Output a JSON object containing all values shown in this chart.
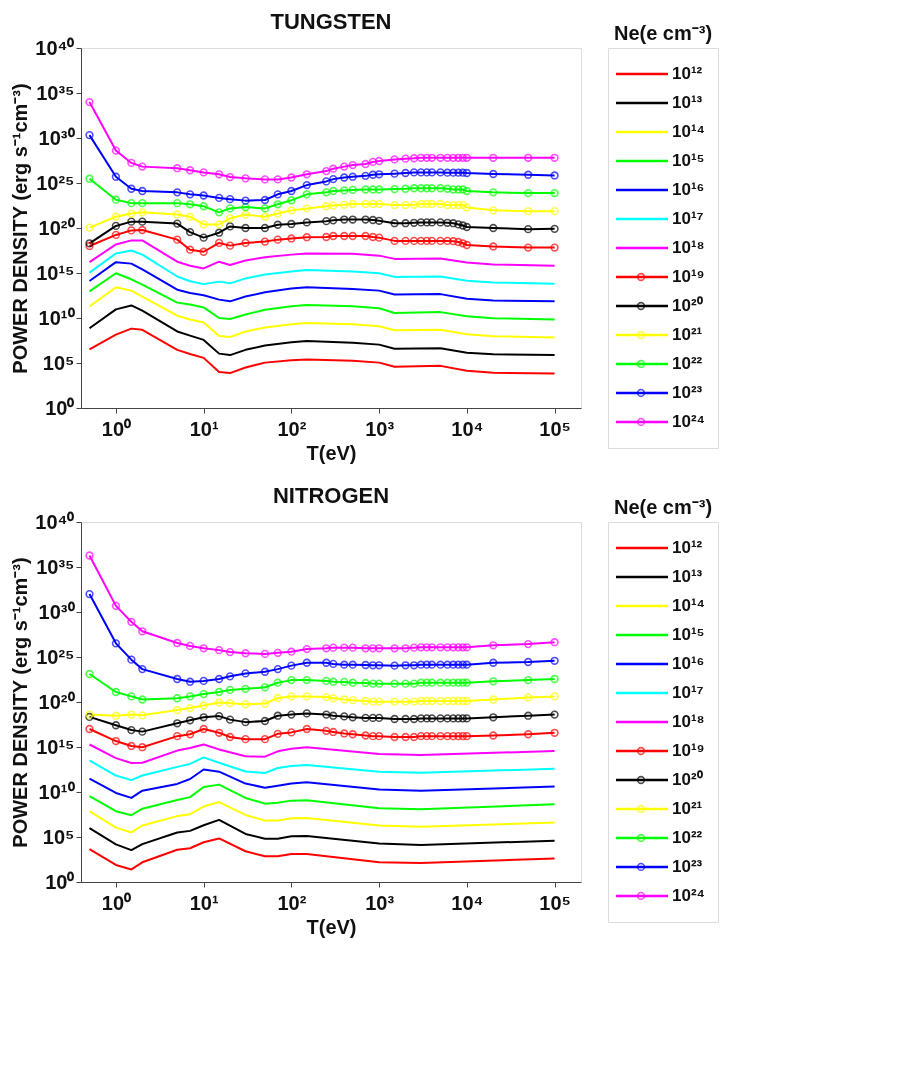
{
  "chart_data": [
    {
      "type": "line",
      "title": "TUNGSTEN",
      "xlabel": "T(eV)",
      "ylabel": "POWER DENSITY (erg s⁻¹cm⁻³)",
      "legend_title": "Ne(e cm⁻³)",
      "legend": "right",
      "grid": false,
      "log": "xy",
      "xlim": [
        0.4,
        200000
      ],
      "ylim": [
        1,
        1e+40
      ],
      "xticks": [
        {
          "value": 1,
          "label": "10⁰"
        },
        {
          "value": 10,
          "label": "10¹"
        },
        {
          "value": 100,
          "label": "10²"
        },
        {
          "value": 1000,
          "label": "10³"
        },
        {
          "value": 10000,
          "label": "10⁴"
        },
        {
          "value": 100000,
          "label": "10⁵"
        }
      ],
      "yticks": [
        {
          "value": 1,
          "label": "10⁰"
        },
        {
          "value": 100000.0,
          "label": "10⁵"
        },
        {
          "value": 10000000000.0,
          "label": "10¹⁰"
        },
        {
          "value": 1000000000000000.0,
          "label": "10¹⁵"
        },
        {
          "value": 1e+20,
          "label": "10²⁰"
        },
        {
          "value": 1e+25,
          "label": "10²⁵"
        },
        {
          "value": 1e+30,
          "label": "10³⁰"
        },
        {
          "value": 1e+35,
          "label": "10³⁵"
        },
        {
          "value": 1e+40,
          "label": "10⁴⁰"
        }
      ],
      "series": [
        {
          "name": "10¹²",
          "color": "#ff0000",
          "marker": "none",
          "x": [
            0.5,
            1,
            1.5,
            2,
            5,
            7,
            10,
            15,
            20,
            30,
            50,
            100,
            150,
            500,
            1000,
            1500,
            5000,
            10000,
            20000,
            100000
          ],
          "values": [
            3200000.0,
            140000000.0,
            660000000.0,
            490000000.0,
            2900000.0,
            1000000.0,
            370000.0,
            10000.0,
            7600.0,
            32000.0,
            110000.0,
            200000.0,
            250000.0,
            180000.0,
            110000.0,
            39000.0,
            48000.0,
            14000.0,
            8300.0,
            6800.0
          ]
        },
        {
          "name": "10¹³",
          "color": "#000000",
          "marker": "none",
          "x": [
            0.5,
            1,
            1.5,
            2,
            5,
            7,
            10,
            15,
            20,
            30,
            50,
            100,
            150,
            500,
            1000,
            1500,
            5000,
            10000,
            20000,
            100000
          ],
          "values": [
            720000000.0,
            91000000000.0,
            250000000000.0,
            66000000000.0,
            320000000.0,
            110000000.0,
            37000000.0,
            1100000.0,
            760000.0,
            2900000.0,
            8900000.0,
            20000000.0,
            28000000.0,
            18000000.0,
            11000000.0,
            3900000.0,
            4400000.0,
            1400000.0,
            930000.0,
            760000.0
          ]
        },
        {
          "name": "10¹⁴",
          "color": "#ffff00",
          "marker": "none",
          "x": [
            0.5,
            1,
            1.5,
            2,
            5,
            7,
            10,
            15,
            20,
            30,
            50,
            100,
            150,
            500,
            1000,
            1500,
            5000,
            10000,
            20000,
            100000
          ],
          "values": [
            190000000000.0,
            26000000000000.0,
            11000000000000.0,
            2400000000000.0,
            18000000000.0,
            6900000000.0,
            3100000000.0,
            100000000.0,
            76000000.0,
            320000000.0,
            890000000.0,
            2000000000.0,
            2800000000.0,
            2000000000.0,
            1200000000.0,
            440000000.0,
            490000000.0,
            160000000.0,
            93000000.0,
            69000000.0
          ]
        },
        {
          "name": "10¹⁵",
          "color": "#00ff00",
          "marker": "none",
          "x": [
            0.5,
            1,
            1.5,
            2,
            5,
            7,
            10,
            15,
            20,
            30,
            50,
            100,
            150,
            500,
            1000,
            1500,
            5000,
            10000,
            20000,
            100000
          ],
          "values": [
            9100000000000.0,
            930000000000000.0,
            200000000000000.0,
            52000000000000.0,
            510000000000.0,
            310000000000.0,
            150000000000.0,
            10000000000.0,
            7800000000.0,
            24000000000.0,
            81000000000.0,
            200000000000.0,
            280000000000.0,
            200000000000.0,
            120000000000.0,
            36000000000.0,
            45000000000.0,
            16000000000.0,
            9500000000.0,
            6900000000.0
          ]
        },
        {
          "name": "10¹⁶",
          "color": "#0000ff",
          "marker": "none",
          "x": [
            0.5,
            1,
            1.5,
            2,
            5,
            7,
            10,
            15,
            20,
            30,
            50,
            100,
            150,
            500,
            1000,
            1500,
            5000,
            10000,
            20000,
            100000
          ],
          "values": [
            130000000000000.0,
            1.6e+16,
            1.1e+16,
            2600000000000000.0,
            14000000000000.0,
            6000000000000.0,
            3300000000000.0,
            1100000000000.0,
            710000000000.0,
            2400000000000.0,
            7400000000000.0,
            19000000000000.0,
            26000000000000.0,
            17000000000000.0,
            11000000000000.0,
            4100000000000.0,
            4500000000000.0,
            1400000000000.0,
            870000000000.0,
            710000000000.0
          ]
        },
        {
          "name": "10¹⁷",
          "color": "#00ffff",
          "marker": "none",
          "x": [
            0.5,
            1,
            1.5,
            2,
            5,
            7,
            10,
            15,
            20,
            30,
            50,
            100,
            150,
            500,
            1000,
            1500,
            5000,
            10000,
            20000,
            100000
          ],
          "values": [
            1100000000000000.0,
            1.5e+17,
            3.2e+17,
            1.1e+17,
            410000000000000.0,
            120000000000000.0,
            58000000000000.0,
            110000000000000.0,
            71000000000000.0,
            250000000000000.0,
            680000000000000.0,
            1500000000000000.0,
            2100000000000000.0,
            1500000000000000.0,
            930000000000000.0,
            370000000000000.0,
            410000000000000.0,
            140000000000000.0,
            87000000000000.0,
            65000000000000.0
          ]
        },
        {
          "name": "10¹⁸",
          "color": "#ff00ff",
          "marker": "none",
          "x": [
            0.5,
            1,
            1.5,
            2,
            5,
            7,
            10,
            15,
            20,
            30,
            50,
            100,
            150,
            500,
            1000,
            1500,
            5000,
            10000,
            20000,
            100000
          ],
          "values": [
            1.6e+16,
            1.5e+18,
            4.2e+18,
            4.2e+18,
            1.8e+16,
            6500000000000000.0,
            3200000000000000.0,
            1.8e+16,
            7900000000000000.0,
            2.5e+16,
            5.6e+16,
            1.1e+17,
            1.5e+17,
            1.4e+17,
            8.5e+16,
            3.7e+16,
            4.1e+16,
            1.5e+16,
            8900000000000000.0,
            6500000000000000.0
          ]
        },
        {
          "name": "10¹⁹",
          "color": "#ff0000",
          "marker": "circle",
          "x": [
            0.5,
            1,
            1.5,
            2,
            5,
            7,
            10,
            15,
            20,
            30,
            50,
            70,
            100,
            150,
            250,
            300,
            400,
            500,
            700,
            850,
            1000,
            1500,
            2000,
            2500,
            3000,
            3500,
            4000,
            5000,
            6000,
            7000,
            8000,
            9000,
            10000,
            20000,
            50000,
            100000
          ],
          "values": [
            1e+18,
            1.7e+19,
            5.4e+19,
            6e+19,
            5.1e+18,
            3.9e+17,
            2.3e+17,
            2.2e+18,
            1.1e+18,
            2.2e+18,
            3.1e+18,
            5.1e+18,
            6.9e+18,
            9.5e+18,
            1e+19,
            1.3e+19,
            1.3e+19,
            1.3e+19,
            1.3e+19,
            1e+19,
            8.5e+18,
            3.7e+18,
            3.7e+18,
            3.7e+18,
            3.7e+18,
            3.7e+18,
            3.7e+18,
            3.7e+18,
            3.7e+18,
            3.4e+18,
            2.8e+18,
            2e+18,
            1.3e+18,
            8.9e+17,
            6.6e+17,
            6.6e+17
          ]
        },
        {
          "name": "10²⁰",
          "color": "#000000",
          "marker": "circle",
          "x": [
            0.5,
            1,
            1.5,
            2,
            5,
            7,
            10,
            15,
            20,
            30,
            50,
            70,
            100,
            150,
            250,
            300,
            400,
            500,
            700,
            850,
            1000,
            1500,
            2000,
            2500,
            3000,
            3500,
            4000,
            5000,
            6000,
            7000,
            8000,
            9000,
            10000,
            20000,
            50000,
            100000
          ],
          "values": [
            2e+18,
            1.7e+20,
            5.1e+20,
            5.1e+20,
            3.1e+20,
            3.5e+19,
            8.5e+18,
            3e+19,
            1.5e+20,
            1e+20,
            1e+20,
            2.3e+20,
            2.8e+20,
            4.2e+20,
            5.8e+20,
            7.1e+20,
            8.7e+20,
            8.7e+20,
            8.7e+20,
            7.8e+20,
            6.3e+20,
            3.4e+20,
            3.4e+20,
            3.8e+20,
            4.2e+20,
            4.2e+20,
            4.2e+20,
            4.2e+20,
            3.8e+20,
            3.4e+20,
            2.5e+20,
            1.9e+20,
            1.3e+20,
            1e+20,
            7.4e+19,
            8.1e+19
          ]
        },
        {
          "name": "10²¹",
          "color": "#ffff00",
          "marker": "circle",
          "x": [
            0.5,
            1,
            1.5,
            2,
            5,
            7,
            10,
            15,
            20,
            30,
            50,
            70,
            100,
            150,
            250,
            300,
            400,
            500,
            700,
            850,
            1000,
            1500,
            2000,
            2500,
            3000,
            3500,
            4000,
            5000,
            6000,
            7000,
            8000,
            9000,
            10000,
            20000,
            50000,
            100000
          ],
          "values": [
            1.1e+20,
            1.8e+21,
            4e+21,
            5.5e+21,
            3.2e+21,
            1.8e+21,
            2.5e+20,
            2.5e+20,
            1.2e+21,
            3.2e+21,
            1.8e+21,
            4e+21,
            9.1e+21,
            1.5e+22,
            2.6e+22,
            3.1e+22,
            3.8e+22,
            4.7e+22,
            4.7e+22,
            4.7e+22,
            4.7e+22,
            3.5e+22,
            3.5e+22,
            3.8e+22,
            4.7e+22,
            4.7e+22,
            4.7e+22,
            4.7e+22,
            3.5e+22,
            3.5e+22,
            3.5e+22,
            3.5e+22,
            1.9e+22,
            9.1e+21,
            7.4e+21,
            7.4e+21
          ]
        },
        {
          "name": "10²²",
          "color": "#00ff00",
          "marker": "circle",
          "x": [
            0.5,
            1,
            1.5,
            2,
            5,
            7,
            10,
            15,
            20,
            30,
            50,
            70,
            100,
            150,
            250,
            300,
            400,
            500,
            700,
            850,
            1000,
            1500,
            2000,
            2500,
            3000,
            3500,
            4000,
            5000,
            6000,
            7000,
            8000,
            9000,
            10000,
            20000,
            50000,
            100000
          ],
          "values": [
            3e+25,
            1.4e+23,
            5.8e+22,
            5.8e+22,
            5.8e+22,
            4.3e+22,
            2.6e+22,
            5.5e+21,
            1.5e+22,
            2.1e+22,
            1.5e+22,
            4.3e+22,
            1.2e+23,
            5.5e+23,
            9.1e+23,
            1.3e+24,
            1.5e+24,
            1.7e+24,
            1.9e+24,
            1.9e+24,
            1.9e+24,
            2.1e+24,
            2.3e+24,
            2.6e+24,
            2.6e+24,
            2.6e+24,
            2.6e+24,
            2.6e+24,
            2.3e+24,
            1.9e+24,
            1.9e+24,
            1.9e+24,
            1.3e+24,
            9.1e+23,
            7.6e+23,
            7.6e+23
          ]
        },
        {
          "name": "10²³",
          "color": "#0000ff",
          "marker": "circle",
          "x": [
            0.5,
            1,
            1.5,
            2,
            5,
            7,
            10,
            15,
            20,
            30,
            50,
            70,
            100,
            150,
            250,
            300,
            400,
            500,
            700,
            850,
            1000,
            1500,
            2000,
            2500,
            3000,
            3500,
            4000,
            5000,
            6000,
            7000,
            8000,
            9000,
            10000,
            20000,
            50000,
            100000
          ],
          "values": [
            2.1e+30,
            5e+25,
            2.3e+24,
            1.3e+24,
            9.1e+23,
            5.5e+23,
            4.1e+23,
            2.2e+23,
            1.6e+23,
            1.1e+23,
            1.3e+23,
            5.5e+23,
            1.3e+24,
            5.9e+24,
            1.5e+25,
            2.7e+25,
            4.1e+25,
            5e+25,
            6.2e+25,
            8.3e+25,
            9.3e+25,
            1.1e+26,
            1.3e+26,
            1.5e+26,
            1.5e+26,
            1.5e+26,
            1.5e+26,
            1.5e+26,
            1.4e+26,
            1.4e+26,
            1.4e+26,
            1.4e+26,
            1.3e+26,
            1e+26,
            8.3e+25,
            6.9e+25
          ]
        },
        {
          "name": "10²⁴",
          "color": "#ff00ff",
          "marker": "circle",
          "x": [
            0.5,
            1,
            1.5,
            2,
            5,
            7,
            10,
            15,
            20,
            30,
            50,
            70,
            100,
            150,
            250,
            300,
            400,
            500,
            700,
            850,
            1000,
            1500,
            2000,
            2500,
            3000,
            3500,
            4000,
            5000,
            6000,
            7000,
            8000,
            9000,
            10000,
            20000,
            50000,
            100000
          ],
          "values": [
            9.8e+33,
            4e+28,
            1.7e+27,
            6.6e+26,
            4.4e+26,
            2.6e+26,
            1.5e+26,
            9.3e+25,
            4.6e+25,
            3.3e+25,
            2.5e+25,
            2.5e+25,
            4.1e+25,
            9.3e+25,
            2.1e+26,
            3.9e+26,
            6.6e+26,
            9.8e+26,
            1.3e+27,
            2.2e+27,
            2.8e+27,
            4.2e+27,
            5.1e+27,
            5.6e+27,
            6.3e+27,
            6.3e+27,
            6.3e+27,
            6.3e+27,
            6.3e+27,
            6.3e+27,
            6.3e+27,
            6.3e+27,
            6.3e+27,
            6.3e+27,
            6.3e+27,
            6.3e+27
          ]
        }
      ]
    },
    {
      "type": "line",
      "title": "NITROGEN",
      "xlabel": "T(eV)",
      "ylabel": "POWER DENSITY (erg s⁻¹cm⁻³)",
      "legend_title": "Ne(e cm⁻³)",
      "legend": "right",
      "grid": false,
      "log": "xy",
      "xlim": [
        0.4,
        200000
      ],
      "ylim": [
        1,
        1e+40
      ],
      "xticks": [
        {
          "value": 1,
          "label": "10⁰"
        },
        {
          "value": 10,
          "label": "10¹"
        },
        {
          "value": 100,
          "label": "10²"
        },
        {
          "value": 1000,
          "label": "10³"
        },
        {
          "value": 10000,
          "label": "10⁴"
        },
        {
          "value": 100000,
          "label": "10⁵"
        }
      ],
      "yticks": [
        {
          "value": 1,
          "label": "10⁰"
        },
        {
          "value": 100000.0,
          "label": "10⁵"
        },
        {
          "value": 10000000000.0,
          "label": "10¹⁰"
        },
        {
          "value": 1000000000000000.0,
          "label": "10¹⁵"
        },
        {
          "value": 1e+20,
          "label": "10²⁰"
        },
        {
          "value": 1e+25,
          "label": "10²⁵"
        },
        {
          "value": 1e+30,
          "label": "10³⁰"
        },
        {
          "value": 1e+35,
          "label": "10³⁵"
        },
        {
          "value": 1e+40,
          "label": "10⁴⁰"
        }
      ],
      "series": [
        {
          "name": "10¹²",
          "color": "#ff0000",
          "marker": "none",
          "x": [
            0.5,
            1,
            1.5,
            2,
            5,
            7,
            10,
            15,
            30,
            50,
            70,
            100,
            150,
            1000,
            3000,
            100000
          ],
          "values": [
            4600.0,
            78,
            25,
            155,
            3800.0,
            5600.0,
            26000.0,
            69000.0,
            2600.0,
            720,
            720,
            1300.0,
            1300.0,
            155,
            126,
            410
          ]
        },
        {
          "name": "10¹³",
          "color": "#000000",
          "marker": "none",
          "x": [
            0.5,
            1,
            1.5,
            2,
            5,
            7,
            10,
            15,
            30,
            50,
            70,
            100,
            150,
            1000,
            3000,
            100000
          ],
          "values": [
            950000.0,
            15000.0,
            3500.0,
            16000.0,
            320000.0,
            480000.0,
            2000000.0,
            7900000.0,
            220000.0,
            63000.0,
            63000.0,
            120000.0,
            130000.0,
            19000.0,
            13000.0,
            39000.0
          ]
        },
        {
          "name": "10¹⁴",
          "color": "#ffff00",
          "marker": "none",
          "x": [
            0.5,
            1,
            1.5,
            2,
            5,
            7,
            10,
            15,
            30,
            50,
            70,
            100,
            150,
            1000,
            3000,
            100000
          ],
          "values": [
            74000000.0,
            1100000.0,
            320000.0,
            1900000.0,
            21000000.0,
            34000000.0,
            240000000.0,
            760000000.0,
            28000000.0,
            6600000.0,
            6600000.0,
            12000000.0,
            13000000.0,
            1900000.0,
            1400000.0,
            4100000.0
          ]
        },
        {
          "name": "10¹⁵",
          "color": "#00ff00",
          "marker": "none",
          "x": [
            0.5,
            1,
            1.5,
            2,
            5,
            7,
            10,
            15,
            30,
            50,
            70,
            100,
            150,
            1000,
            3000,
            100000
          ],
          "values": [
            3500000000.0,
            74000000.0,
            26000000.0,
            140000000.0,
            1300000000.0,
            2700000000.0,
            36000000000.0,
            66000000000.0,
            2200000000.0,
            510000000.0,
            630000000.0,
            1100000000.0,
            1200000000.0,
            160000000.0,
            120000000.0,
            430000000.0
          ]
        },
        {
          "name": "10¹⁶",
          "color": "#0000ff",
          "marker": "none",
          "x": [
            0.5,
            1,
            1.5,
            2,
            5,
            7,
            10,
            15,
            30,
            50,
            70,
            100,
            150,
            1000,
            3000,
            100000
          ],
          "values": [
            310000000000.0,
            7800000000.0,
            2200000000.0,
            14000000000.0,
            79000000000.0,
            280000000000.0,
            3200000000000.0,
            1800000000000.0,
            87000000000.0,
            30000000000.0,
            49000000000.0,
            87000000000.0,
            120000000000.0,
            19000000000.0,
            14000000000.0,
            41000000000.0
          ]
        },
        {
          "name": "10¹⁷",
          "color": "#00ffff",
          "marker": "none",
          "x": [
            0.5,
            1,
            1.5,
            2,
            5,
            7,
            10,
            15,
            30,
            50,
            70,
            100,
            150,
            1000,
            3000,
            100000
          ],
          "values": [
            32000000000000.0,
            680000000000.0,
            210000000000.0,
            680000000000.0,
            6200000000000.0,
            13000000000000.0,
            71000000000000.0,
            18000000000000.0,
            1900000000000.0,
            1300000000000.0,
            4700000000000.0,
            7600000000000.0,
            10000000000000.0,
            1800000000000.0,
            1400000000000.0,
            3800000000000.0
          ]
        },
        {
          "name": "10¹⁸",
          "color": "#ff00ff",
          "marker": "none",
          "x": [
            0.5,
            1,
            1.5,
            2,
            5,
            7,
            10,
            15,
            30,
            50,
            70,
            100,
            150,
            1000,
            3000,
            100000
          ],
          "values": [
            1900000000000000.0,
            58000000000000.0,
            17000000000000.0,
            18000000000000.0,
            400000000000000.0,
            790000000000000.0,
            1900000000000000.0,
            540000000000000.0,
            93000000000000.0,
            85000000000000.0,
            330000000000000.0,
            650000000000000.0,
            950000000000000.0,
            170000000000000.0,
            130000000000000.0,
            360000000000000.0
          ]
        },
        {
          "name": "10¹⁹",
          "color": "#ff0000",
          "marker": "circle",
          "x": [
            0.5,
            1,
            1.5,
            2,
            5,
            7,
            10,
            15,
            20,
            30,
            50,
            70,
            100,
            150,
            250,
            300,
            400,
            500,
            700,
            850,
            1000,
            1500,
            2000,
            2500,
            3000,
            3500,
            4000,
            5000,
            6000,
            7000,
            8000,
            9000,
            10000,
            20000,
            50000,
            100000
          ],
          "values": [
            1e+17,
            4600000000000000.0,
            1300000000000000.0,
            950000000000000.0,
            1.6e+16,
            2.6e+16,
            1e+17,
            3.8e+16,
            1.3e+16,
            7400000000000000.0,
            7400000000000000.0,
            2.9e+16,
            4.2e+16,
            1e+17,
            6.2e+16,
            4.7e+16,
            3.2e+16,
            2.6e+16,
            1.9e+16,
            1.6e+16,
            1.6e+16,
            1.3e+16,
            1.3e+16,
            1.3e+16,
            1.6e+16,
            1.6e+16,
            1.6e+16,
            1.6e+16,
            1.6e+16,
            1.6e+16,
            1.6e+16,
            1.6e+16,
            1.6e+16,
            1.9e+16,
            2.6e+16,
            3.8e+16
          ]
        },
        {
          "name": "10²⁰",
          "color": "#000000",
          "marker": "circle",
          "x": [
            0.5,
            1,
            1.5,
            2,
            5,
            7,
            10,
            15,
            20,
            30,
            50,
            70,
            100,
            150,
            250,
            300,
            400,
            500,
            700,
            850,
            1000,
            1500,
            2000,
            2500,
            3000,
            3500,
            4000,
            5000,
            6000,
            7000,
            8000,
            9000,
            10000,
            20000,
            50000,
            100000
          ],
          "values": [
            2.2e+18,
            2.6e+17,
            7.6e+16,
            5.1e+16,
            4.3e+17,
            9.3e+17,
            2e+18,
            2.7e+18,
            1.1e+18,
            5.8e+17,
            7.8e+17,
            3e+18,
            4e+18,
            5.4e+18,
            4e+18,
            3e+18,
            2.5e+18,
            2e+18,
            1.7e+18,
            1.7e+18,
            1.7e+18,
            1.3e+18,
            1.3e+18,
            1.3e+18,
            1.5e+18,
            1.5e+18,
            1.5e+18,
            1.5e+18,
            1.5e+18,
            1.5e+18,
            1.5e+18,
            1.5e+18,
            1.5e+18,
            2e+18,
            3e+18,
            4e+18
          ]
        },
        {
          "name": "10²¹",
          "color": "#ffff00",
          "marker": "circle",
          "x": [
            0.5,
            1,
            1.5,
            2,
            5,
            7,
            10,
            15,
            20,
            30,
            50,
            70,
            100,
            150,
            250,
            300,
            400,
            500,
            700,
            850,
            1000,
            1500,
            2000,
            2500,
            3000,
            3500,
            4000,
            5000,
            6000,
            7000,
            8000,
            9000,
            10000,
            20000,
            50000,
            100000
          ],
          "values": [
            4e+18,
            3e+18,
            4e+18,
            3.3e+18,
            1.3e+19,
            2.1e+19,
            4.1e+19,
            8.9e+19,
            7.4e+19,
            5.5e+19,
            6.6e+19,
            2.8e+20,
            4.2e+20,
            4.2e+20,
            3.5e+20,
            2.6e+20,
            1.9e+20,
            1.6e+20,
            1.3e+20,
            1.1e+20,
            1.1e+20,
            1.1e+20,
            1.1e+20,
            1.1e+20,
            1.3e+20,
            1.3e+20,
            1.3e+20,
            1.3e+20,
            1.3e+20,
            1.3e+20,
            1.3e+20,
            1.3e+20,
            1.3e+20,
            1.9e+20,
            3.2e+20,
            4.2e+20
          ]
        },
        {
          "name": "10²²",
          "color": "#00ff00",
          "marker": "circle",
          "x": [
            0.5,
            1,
            1.5,
            2,
            5,
            7,
            10,
            15,
            20,
            30,
            50,
            70,
            100,
            150,
            250,
            300,
            400,
            500,
            700,
            850,
            1000,
            1500,
            2000,
            2500,
            3000,
            3500,
            4000,
            5000,
            6000,
            7000,
            8000,
            9000,
            10000,
            20000,
            50000,
            100000
          ],
          "values": [
            1.3e+23,
            1.3e+21,
            4.2e+20,
            1.9e+20,
            2.6e+20,
            4.2e+20,
            7.6e+20,
            1.3e+21,
            2.2e+21,
            2.9e+21,
            4.3e+21,
            1.4e+22,
            2.7e+22,
            2.7e+22,
            2.2e+22,
            1.8e+22,
            1.7e+22,
            1.4e+22,
            1.3e+22,
            1.1e+22,
            1.1e+22,
            1.1e+22,
            1.1e+22,
            1.1e+22,
            1.4e+22,
            1.4e+22,
            1.4e+22,
            1.4e+22,
            1.4e+22,
            1.4e+22,
            1.4e+22,
            1.4e+22,
            1.4e+22,
            2e+22,
            2.7e+22,
            3.6e+22
          ]
        },
        {
          "name": "10²³",
          "color": "#0000ff",
          "marker": "circle",
          "x": [
            0.5,
            1,
            1.5,
            2,
            5,
            7,
            10,
            15,
            20,
            30,
            50,
            70,
            100,
            150,
            250,
            300,
            400,
            500,
            700,
            850,
            1000,
            1500,
            2000,
            2500,
            3000,
            3500,
            4000,
            5000,
            6000,
            7000,
            8000,
            9000,
            10000,
            20000,
            50000,
            100000
          ],
          "values": [
            9.8e+31,
            3.3e+26,
            5.1e+24,
            4.5e+23,
            3.6e+22,
            1.8e+22,
            2.2e+22,
            3.6e+22,
            7.1e+22,
            1.5e+23,
            2.3e+23,
            4.5e+23,
            1.1e+24,
            2.3e+24,
            2.3e+24,
            1.7e+24,
            1.4e+24,
            1.4e+24,
            1.3e+24,
            1.2e+24,
            1.2e+24,
            1.1e+24,
            1.2e+24,
            1.2e+24,
            1.4e+24,
            1.4e+24,
            1.4e+24,
            1.4e+24,
            1.4e+24,
            1.4e+24,
            1.4e+24,
            1.4e+24,
            1.4e+24,
            2.3e+24,
            2.8e+24,
            3.8e+24
          ]
        },
        {
          "name": "10²⁴",
          "color": "#ff00ff",
          "marker": "circle",
          "x": [
            0.5,
            1,
            1.5,
            2,
            5,
            7,
            10,
            15,
            20,
            30,
            50,
            70,
            100,
            150,
            250,
            300,
            400,
            500,
            700,
            850,
            1000,
            1500,
            2000,
            2500,
            3000,
            3500,
            4000,
            5000,
            6000,
            7000,
            8000,
            9000,
            10000,
            20000,
            50000,
            100000
          ],
          "values": [
            1.9e+36,
            4.8e+30,
            8.1e+28,
            7.2e+27,
            3.6e+26,
            1.7e+26,
            9.3e+25,
            5.8e+25,
            3.5e+25,
            2.6e+25,
            2.2e+25,
            2.9e+25,
            3.9e+25,
            7.6e+25,
            9.3e+25,
            1.1e+26,
            1.1e+26,
            1.1e+26,
            9.3e+25,
            9.3e+25,
            9.3e+25,
            9.3e+25,
            9.3e+25,
            1.1e+26,
            1.2e+26,
            1.2e+26,
            1.2e+26,
            1.2e+26,
            1.2e+26,
            1.2e+26,
            1.2e+26,
            1.2e+26,
            1.2e+26,
            2e+26,
            2.7e+26,
            4.4e+26
          ]
        }
      ]
    }
  ]
}
